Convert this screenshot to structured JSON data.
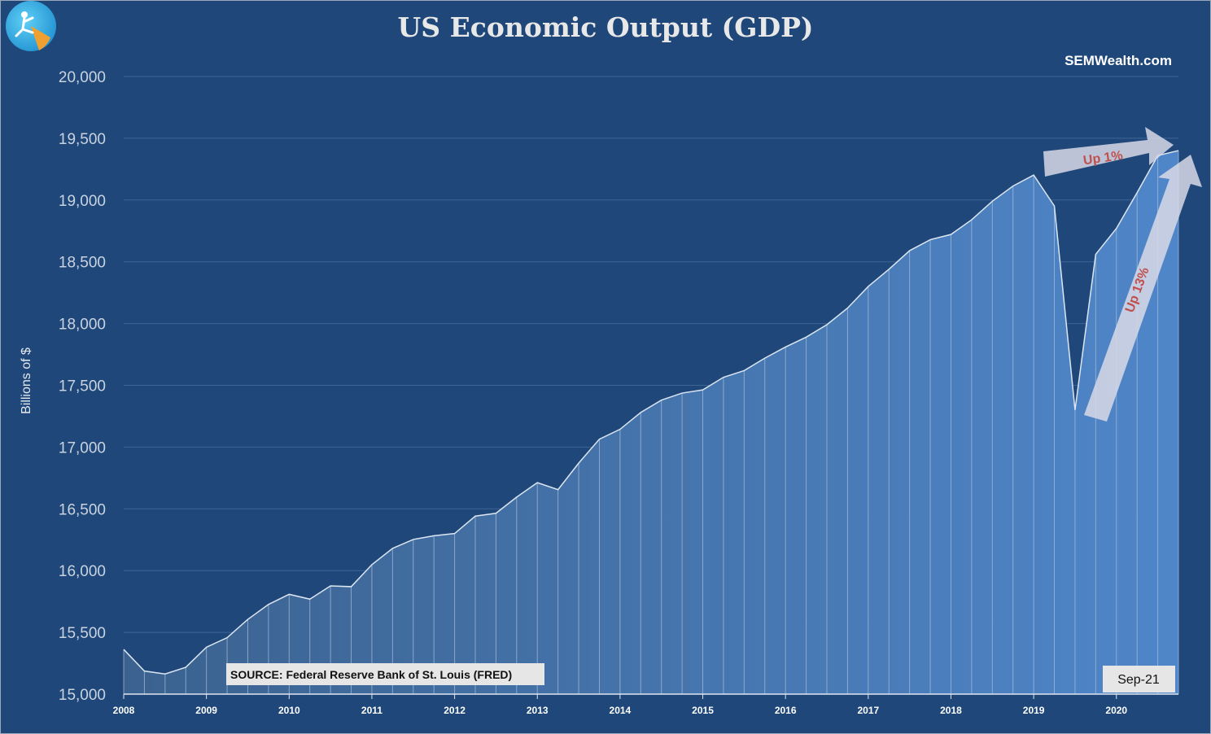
{
  "chart_data": {
    "type": "area",
    "title": "US Economic Output (GDP)",
    "xlabel": "",
    "ylabel": "Billions of $",
    "ylim": [
      15000,
      20000
    ],
    "y_ticks": [
      15000,
      15500,
      16000,
      16500,
      17000,
      17500,
      18000,
      18500,
      19000,
      19500,
      20000
    ],
    "y_tick_labels": [
      "15,000",
      "15,500",
      "16,000",
      "16,500",
      "17,000",
      "17,500",
      "18,000",
      "18,500",
      "19,000",
      "19,500",
      "20,000"
    ],
    "x_tick_labels": [
      "2008",
      "2009",
      "2010",
      "2011",
      "2012",
      "2013",
      "2014",
      "2015",
      "2016",
      "2017",
      "2018",
      "2019",
      "2020"
    ],
    "grid": true,
    "series": [
      {
        "name": "GDP",
        "values": [
          15362,
          15187,
          15163,
          15217,
          15380,
          15457,
          15605,
          15726,
          15808,
          15769,
          15876,
          15870,
          16048,
          16180,
          16252,
          16282,
          16300,
          16441,
          16464,
          16595,
          16712,
          16655,
          16870,
          17064,
          17144,
          17280,
          17380,
          17437,
          17463,
          17565,
          17619,
          17720,
          17810,
          17890,
          17991,
          18125,
          18300,
          18439,
          18590,
          18679,
          18721,
          18840,
          18990,
          19113,
          19202,
          18952,
          17300,
          18560,
          18770,
          19060,
          19360,
          19400
        ]
      }
    ]
  },
  "header": {
    "title": "US Economic Output (GDP)",
    "brand": "SEMWealth.com"
  },
  "annotations": {
    "up_small": "Up 1%",
    "up_large": "Up 13%",
    "source": "SOURCE: Federal Reserve Bank of St. Louis (FRED)",
    "date": "Sep-21"
  },
  "colors": {
    "background": "#1f477a",
    "area_light": "#4a7fc0",
    "area_dark": "#3d6599",
    "line": "#dce6f2",
    "annotation_text": "#c0504d"
  }
}
